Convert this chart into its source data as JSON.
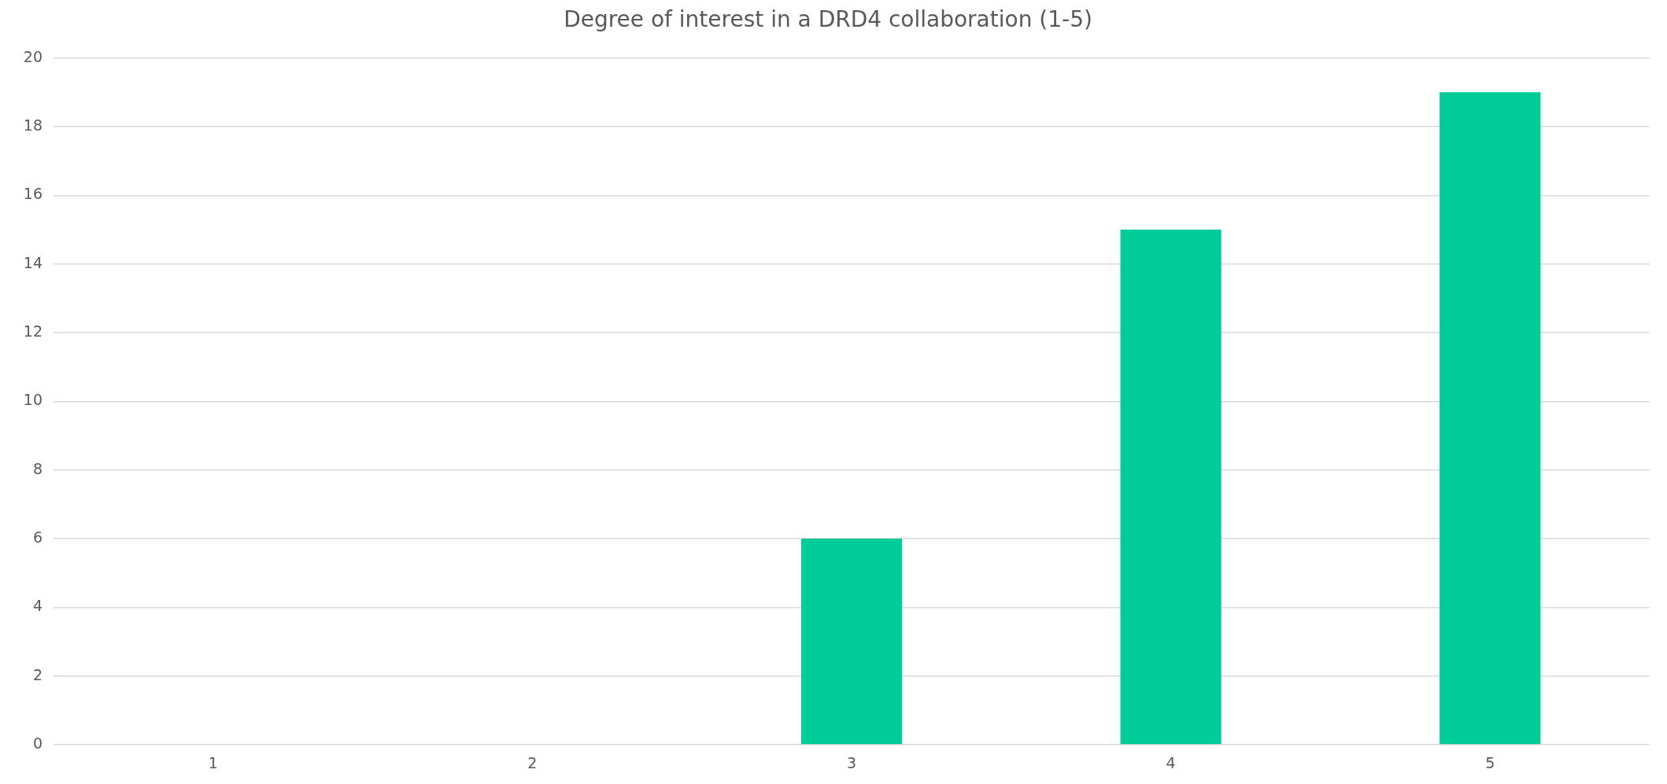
{
  "chart_data": {
    "type": "bar",
    "title": "Degree of interest in a DRD4 collaboration (1-5)",
    "categories": [
      "1",
      "2",
      "3",
      "4",
      "5"
    ],
    "values": [
      0,
      0,
      6,
      15,
      19
    ],
    "color": "#00cc99",
    "ylim": [
      0,
      20
    ],
    "yticks": [
      0,
      2,
      4,
      6,
      8,
      10,
      12,
      14,
      16,
      18,
      20
    ],
    "grid": "y",
    "legend": false
  }
}
